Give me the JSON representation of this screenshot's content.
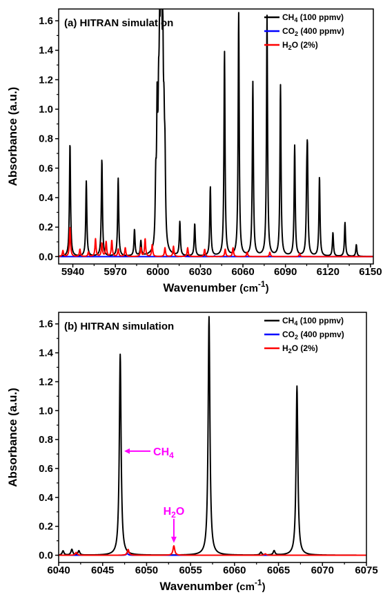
{
  "chart_data": [
    {
      "type": "line",
      "panel": "(a)",
      "title": "HITRAN simulation",
      "xlabel": "Wavenumber",
      "xlabel_unit": "(cm",
      "xlabel_exp": "-1",
      "xlabel_close": ")",
      "ylabel": "Absorbance (a.u.)",
      "xlim": [
        5930,
        6152
      ],
      "ylim": [
        -0.05,
        1.68
      ],
      "xticks": [
        5940,
        5970,
        6000,
        6030,
        6060,
        6090,
        6120,
        6150
      ],
      "yticks": [
        0.0,
        0.2,
        0.4,
        0.6,
        0.8,
        1.0,
        1.2,
        1.4,
        1.6
      ],
      "legend_position": "top-right",
      "series": [
        {
          "name": "CH4 (100 ppmv)",
          "name_main": "CH",
          "name_sub": "4",
          "name_tail": " (100 ppmv)",
          "color": "#000000",
          "peaks": [
            [
              5938.0,
              0.77
            ],
            [
              5949.5,
              0.51
            ],
            [
              5960.5,
              0.66
            ],
            [
              5972.0,
              0.53
            ],
            [
              5983.5,
              0.18
            ],
            [
              5988.0,
              0.1
            ],
            [
              5998.5,
              0.4
            ],
            [
              5999.5,
              0.87
            ],
            [
              6000.5,
              0.7
            ],
            [
              6001.2,
              0.93
            ],
            [
              6002.0,
              1.38
            ],
            [
              6002.7,
              1.0
            ],
            [
              6003.5,
              1.07
            ],
            [
              6004.3,
              0.6
            ],
            [
              6005.0,
              0.5
            ],
            [
              6015.5,
              0.23
            ],
            [
              6026.0,
              0.22
            ],
            [
              6037.0,
              0.47
            ],
            [
              6047.0,
              1.39
            ],
            [
              6057.0,
              1.65
            ],
            [
              6067.0,
              1.18
            ],
            [
              6077.0,
              1.63
            ],
            [
              6086.5,
              1.16
            ],
            [
              6096.5,
              0.75
            ],
            [
              6105.5,
              0.63
            ],
            [
              6105.0,
              0.34
            ],
            [
              6114.0,
              0.54
            ],
            [
              6123.5,
              0.16
            ],
            [
              6132.0,
              0.23
            ],
            [
              6140.0,
              0.08
            ]
          ]
        },
        {
          "name": "CO2 (400 ppmv)",
          "name_main": "CO",
          "name_sub": "2",
          "name_tail": " (400 ppmv)",
          "color": "#0000ff",
          "peaks": [
            [
              6018.0,
              0.005
            ],
            [
              6040.0,
              0.005
            ]
          ]
        },
        {
          "name": "H2O (2%)",
          "name_main": "H",
          "name_sub": "2",
          "name_tail": "O (2%)",
          "color": "#ff0000",
          "peaks": [
            [
              5933.0,
              0.04
            ],
            [
              5938.0,
              0.2
            ],
            [
              5945.0,
              0.05
            ],
            [
              5951.0,
              0.03
            ],
            [
              5956.0,
              0.12
            ],
            [
              5960.5,
              0.09
            ],
            [
              5963.5,
              0.1
            ],
            [
              5967.5,
              0.11
            ],
            [
              5972.0,
              0.05
            ],
            [
              5977.0,
              0.06
            ],
            [
              5988.0,
              0.06
            ],
            [
              5991.0,
              0.12
            ],
            [
              5996.0,
              0.08
            ],
            [
              6005.0,
              0.06
            ],
            [
              6011.0,
              0.07
            ],
            [
              6021.0,
              0.06
            ],
            [
              6033.0,
              0.05
            ],
            [
              6047.5,
              0.05
            ],
            [
              6053.0,
              0.06
            ],
            [
              6063.0,
              0.03
            ],
            [
              6079.0,
              0.03
            ],
            [
              6100.0,
              0.02
            ]
          ]
        }
      ]
    },
    {
      "type": "line",
      "panel": "(b)",
      "title": "HITRAN simulation",
      "xlabel": "Wavenumber",
      "xlabel_unit": "(cm",
      "xlabel_exp": "-1",
      "xlabel_close": ")",
      "ylabel": "Absorbance (a.u.)",
      "xlim": [
        6040,
        6075
      ],
      "ylim": [
        -0.05,
        1.68
      ],
      "xticks": [
        6040,
        6045,
        6050,
        6055,
        6060,
        6065,
        6070,
        6075
      ],
      "yticks": [
        0.0,
        0.2,
        0.4,
        0.6,
        0.8,
        1.0,
        1.2,
        1.4,
        1.6
      ],
      "legend_position": "top-right",
      "series": [
        {
          "name": "CH4 (100 ppmv)",
          "name_main": "CH",
          "name_sub": "4",
          "name_tail": " (100 ppmv)",
          "color": "#000000",
          "peaks": [
            [
              6040.5,
              0.03
            ],
            [
              6041.5,
              0.04
            ],
            [
              6042.3,
              0.03
            ],
            [
              6047.0,
              1.39
            ],
            [
              6057.1,
              1.65
            ],
            [
              6063.0,
              0.02
            ],
            [
              6064.5,
              0.03
            ],
            [
              6067.1,
              1.17
            ]
          ]
        },
        {
          "name": "CO2 (400 ppmv)",
          "name_main": "CO",
          "name_sub": "2",
          "name_tail": " (400 ppmv)",
          "color": "#0000ff",
          "peaks": [
            [
              6047.8,
              0.012
            ]
          ]
        },
        {
          "name": "H2O (2%)",
          "name_main": "H",
          "name_sub": "2",
          "name_tail": "O (2%)",
          "color": "#ff0000",
          "peaks": [
            [
              6042.0,
              0.02
            ],
            [
              6047.9,
              0.04
            ],
            [
              6053.1,
              0.065
            ],
            [
              6063.5,
              0.01
            ]
          ]
        }
      ],
      "annotations": [
        {
          "label_main": "CH",
          "label_sub": "4",
          "label_tail": "",
          "points_to": [
            6047.3,
            0.72
          ],
          "color": "#ff00ff"
        },
        {
          "label_main": "H",
          "label_sub": "2",
          "label_tail": "O",
          "points_to": [
            6053.1,
            0.08
          ],
          "color": "#ff00ff"
        }
      ]
    }
  ]
}
